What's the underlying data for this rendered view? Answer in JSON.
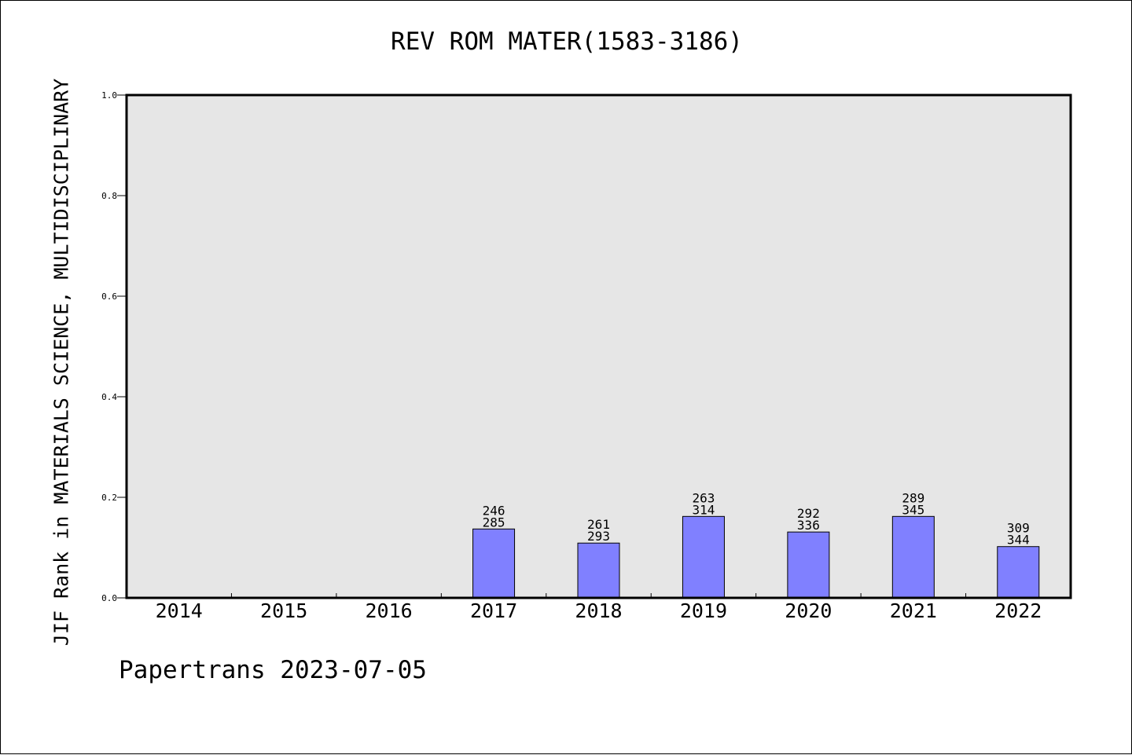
{
  "chart_data": {
    "type": "bar",
    "title": "REV ROM MATER(1583-3186)",
    "xlabel": "",
    "ylabel": "JIF Rank in MATERIALS SCIENCE, MULTIDISCIPLINARY",
    "categories": [
      "2014",
      "2015",
      "2016",
      "2017",
      "2018",
      "2019",
      "2020",
      "2021",
      "2022"
    ],
    "values": [
      null,
      null,
      null,
      0.137,
      0.109,
      0.162,
      0.131,
      0.162,
      0.102
    ],
    "rank_labels": [
      null,
      null,
      null,
      [
        "246",
        "285"
      ],
      [
        "261",
        "293"
      ],
      [
        "263",
        "314"
      ],
      [
        "292",
        "336"
      ],
      [
        "289",
        "345"
      ],
      [
        "309",
        "344"
      ]
    ],
    "ylim": [
      0,
      1.0
    ],
    "yticks": [
      "0.0",
      "0.2",
      "0.4",
      "0.6",
      "0.8",
      "1.0"
    ],
    "grid": false,
    "colors": {
      "bar": "#8080ff",
      "plot_background": "#e6e6e6",
      "axes": "#000000"
    }
  },
  "footer": "Papertrans 2023-07-05"
}
